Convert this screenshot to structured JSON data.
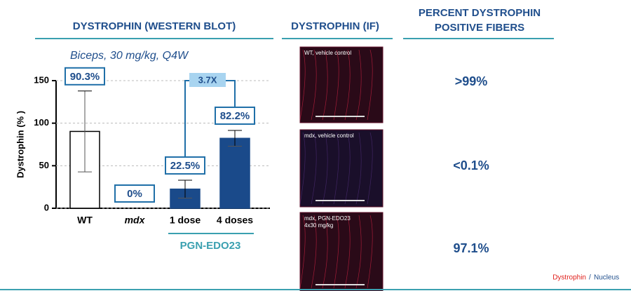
{
  "sections": [
    "DYSTROPHIN (WESTERN BLOT)",
    "DYSTROPHIN (IF)",
    "PERCENT DYSTROPHIN",
    "POSITIVE FIBERS"
  ],
  "chart_data": {
    "type": "bar",
    "subtitle": "Biceps, 30 mg/kg, Q4W",
    "y_label": "Dystrophin (% )",
    "categories": [
      "WT",
      "mdx",
      "1 dose",
      "4 doses"
    ],
    "values": [
      90.3,
      0,
      22.5,
      82.2
    ],
    "value_labels": [
      "90.3%",
      "0%",
      "22.5%",
      "82.2%"
    ],
    "errors": [
      47.5,
      0,
      10.5,
      9.3
    ],
    "colors": [
      "#ffffff",
      "#ffffff",
      "#1a4a8a",
      "#1a4a8a"
    ],
    "ylim": [
      0,
      150
    ],
    "yticks": [
      0,
      50,
      100,
      150
    ],
    "annotation": "3.7X",
    "group_label": "PGN-EDO23"
  },
  "panels": [
    [
      "WT, vehicle control"
    ],
    [
      "mdx, vehicle control"
    ],
    [
      "mdx, PGN-EDO23",
      "4x30 mg/kg"
    ]
  ],
  "percent_positive": [
    ">99%",
    "<0.1%",
    "97.1%"
  ],
  "legend": [
    "Dystrophin",
    "/",
    "Nucleus"
  ]
}
